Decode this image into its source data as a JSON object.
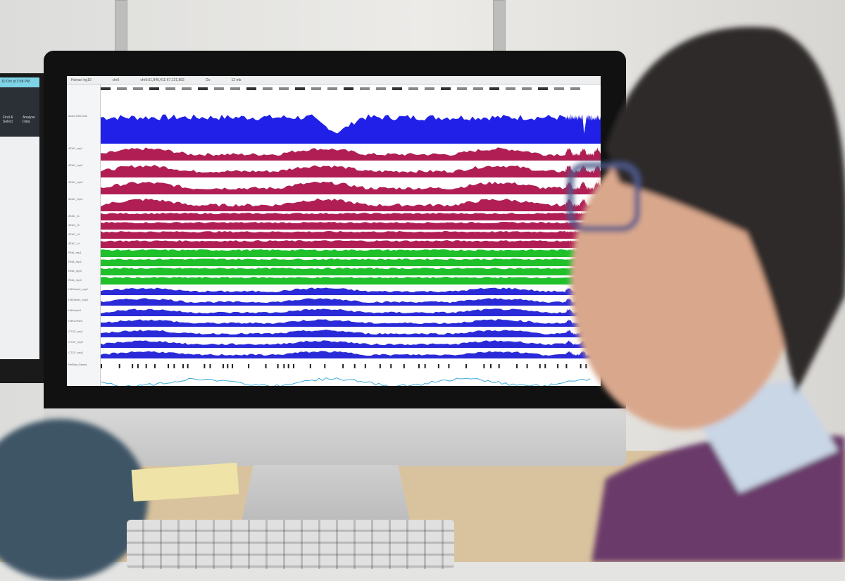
{
  "side_monitor": {
    "date_bar": "10 Oct at 3:58 PM",
    "tools": [
      "Find & Select",
      "Analyse Data"
    ]
  },
  "browser": {
    "genome": "Human hg19",
    "chromosome": "chr5",
    "locus": "chr5:51,846,411-67,131,882",
    "go_label": "Go",
    "scale_label": "12 mb",
    "tracks": [
      {
        "name": "Aorta H3K27ac",
        "color": "#2020e8",
        "kind": "big"
      },
      {
        "name": "ATAC_rep1",
        "color": "#b01e54",
        "kind": "mid"
      },
      {
        "name": "ATAC_rep2",
        "color": "#b01e54",
        "kind": "mid"
      },
      {
        "name": "ATAC_rep3",
        "color": "#b01e54",
        "kind": "mid"
      },
      {
        "name": "ATAC_rep4",
        "color": "#b01e54",
        "kind": "mid"
      },
      {
        "name": "ATAC_r1",
        "color": "#b01e54",
        "kind": "thin"
      },
      {
        "name": "ATAC_r2",
        "color": "#b01e54",
        "kind": "thin"
      },
      {
        "name": "ATAC_r3",
        "color": "#b01e54",
        "kind": "thin"
      },
      {
        "name": "ATAC_r4",
        "color": "#b01e54",
        "kind": "thin"
      },
      {
        "name": "RNA_rep1",
        "color": "#1fc02a",
        "kind": "thin"
      },
      {
        "name": "RNA_rep2",
        "color": "#1fc02a",
        "kind": "thin"
      },
      {
        "name": "RNA_rep3",
        "color": "#1fc02a",
        "kind": "thin"
      },
      {
        "name": "RNA_rep4",
        "color": "#1fc02a",
        "kind": "thin"
      },
      {
        "name": "H3K4me1_rep1",
        "color": "#2a2ad8",
        "kind": "low"
      },
      {
        "name": "H3K4me1_rep2",
        "color": "#2a2ad8",
        "kind": "low"
      },
      {
        "name": "H3K4me3",
        "color": "#2a2ad8",
        "kind": "low"
      },
      {
        "name": "H3K27me3",
        "color": "#2a2ad8",
        "kind": "low"
      },
      {
        "name": "CTCF_rep1",
        "color": "#2a2ad8",
        "kind": "low"
      },
      {
        "name": "CTCF_rep2",
        "color": "#2a2ad8",
        "kind": "low"
      },
      {
        "name": "CTCF_rep3",
        "color": "#2a2ad8",
        "kind": "low"
      }
    ],
    "gene_track_label": "RefSeq Genes"
  }
}
